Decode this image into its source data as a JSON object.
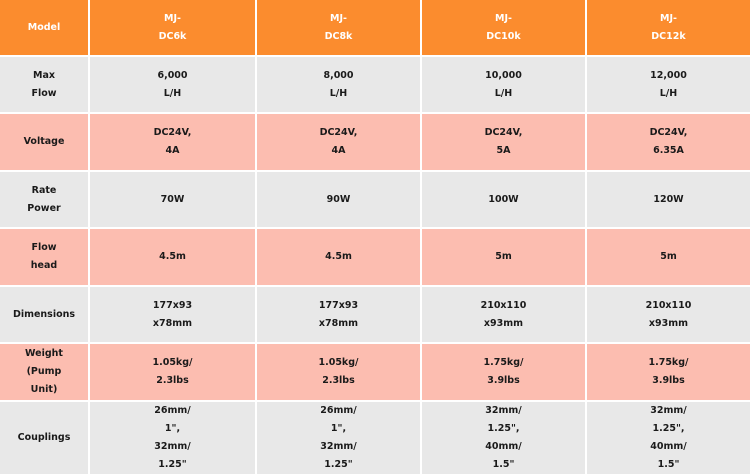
{
  "colors": {
    "header": "#FB8C2E",
    "row_gray": "#E8E8E8",
    "row_pink": "#FCBDB0"
  },
  "header": [
    "Model",
    "MJ-\nDC6k",
    "MJ-\nDC8k",
    "MJ-\nDC10k",
    "MJ-\nDC12k"
  ],
  "rows": [
    [
      "Max\nFlow",
      "6,000\nL/H",
      "8,000\nL/H",
      "10,000\nL/H",
      "12,000\nL/H"
    ],
    [
      "Voltage",
      "DC24V,\n4A",
      "DC24V,\n4A",
      "DC24V,\n5A",
      "DC24V,\n6.35A"
    ],
    [
      "Rate\nPower",
      "70W",
      "90W",
      "100W",
      "120W"
    ],
    [
      "Flow\nhead",
      "4.5m",
      "4.5m",
      "5m",
      "5m"
    ],
    [
      "Dimensions",
      "177x93\nx78mm",
      "177x93\nx78mm",
      "210x110\nx93mm",
      "210x110\nx93mm"
    ],
    [
      "Weight\n(Pump\nUnit)",
      "1.05kg/\n2.3lbs",
      "1.05kg/\n2.3lbs",
      "1.75kg/\n3.9lbs",
      "1.75kg/\n3.9lbs"
    ],
    [
      "Couplings",
      "26mm/\n1\",\n32mm/\n1.25\"",
      "26mm/\n1\",\n32mm/\n1.25\"",
      "32mm/\n1.25\",\n40mm/\n1.5\"",
      "32mm/\n1.25\",\n40mm/\n1.5\""
    ]
  ]
}
